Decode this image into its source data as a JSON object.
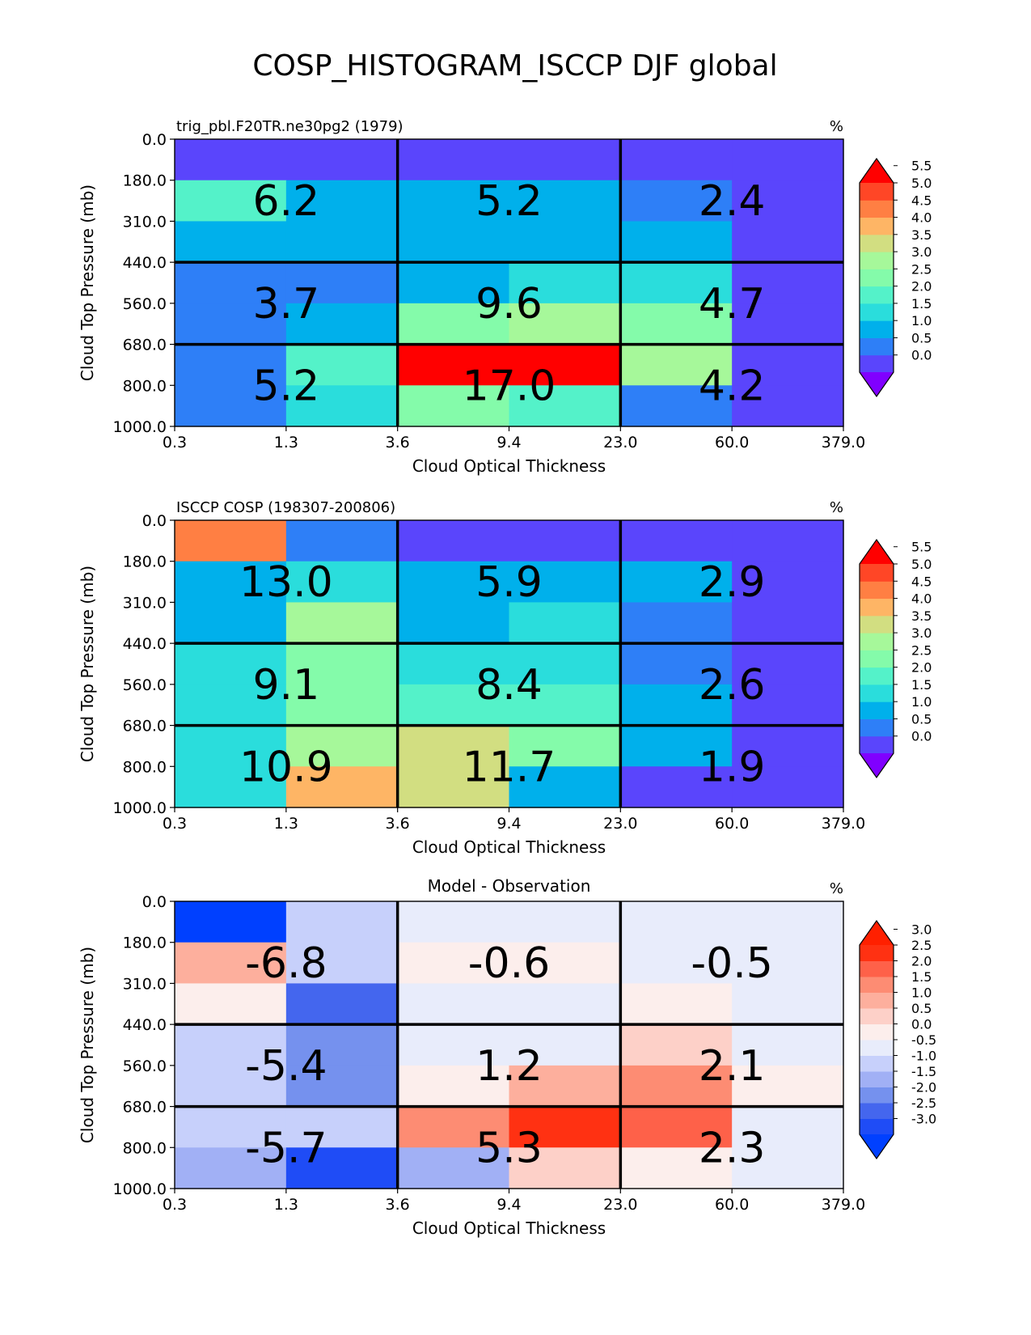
{
  "figure": {
    "suptitle": "COSP_HISTOGRAM_ISCCP DJF global"
  },
  "colors": {
    "rainbow_levels": [
      "#8000ff",
      "#5a45fc",
      "#2e7ff7",
      "#00b0eb",
      "#2adddc",
      "#54f2c9",
      "#84fbaa",
      "#a6f89a",
      "#d2de81",
      "#feb565",
      "#ff7f43",
      "#ff4626",
      "#ff0000"
    ],
    "diff_levels": [
      "#0040ff",
      "#1f4cf6",
      "#4466ee",
      "#7591ee",
      "#a1b0f5",
      "#c7d0fb",
      "#e8ecfb",
      "#fceeec",
      "#fdd0c8",
      "#fdaf9d",
      "#fd8c73",
      "#fe6149",
      "#ff3112",
      "#ff2000"
    ]
  },
  "chart_data": [
    {
      "type": "heatmap",
      "title": "trig_pbl.F20TR.ne30pg2 (1979)",
      "units": "%",
      "xlabel": "Cloud Optical Thickness",
      "ylabel": "Cloud Top Pressure (mb)",
      "x_edges": [
        "0.3",
        "1.3",
        "3.6",
        "9.4",
        "23.0",
        "60.0",
        "379.0"
      ],
      "y_edges": [
        "0.0",
        "180.0",
        "310.0",
        "440.0",
        "560.0",
        "680.0",
        "800.0",
        "1000.0"
      ],
      "values": [
        [
          0.3,
          0.3,
          0.3,
          0.3,
          0.3,
          0.3
        ],
        [
          2.2,
          1.3,
          1.3,
          1.3,
          0.8,
          0.3
        ],
        [
          1.3,
          1.3,
          1.3,
          1.3,
          1.3,
          0.3
        ],
        [
          0.8,
          0.8,
          1.3,
          1.8,
          1.8,
          0.3
        ],
        [
          0.8,
          1.3,
          2.8,
          3.3,
          2.8,
          0.3
        ],
        [
          0.8,
          2.3,
          6.0,
          6.0,
          3.3,
          0.3
        ],
        [
          0.8,
          1.8,
          2.8,
          2.3,
          0.8,
          0.3
        ]
      ],
      "colorbar": {
        "levels": [
          "0.0",
          "0.5",
          "1.0",
          "1.5",
          "2.0",
          "2.5",
          "3.0",
          "3.5",
          "4.0",
          "4.5",
          "5.0",
          "5.5"
        ],
        "extend": "both"
      },
      "annotations": [
        "6.2",
        "5.2",
        "2.4",
        "3.7",
        "9.6",
        "4.7",
        "5.2",
        "17.0",
        "4.2"
      ]
    },
    {
      "type": "heatmap",
      "title": "ISCCP COSP (198307-200806)",
      "units": "%",
      "xlabel": "Cloud Optical Thickness",
      "ylabel": "Cloud Top Pressure (mb)",
      "x_edges": [
        "0.3",
        "1.3",
        "3.6",
        "9.4",
        "23.0",
        "60.0",
        "379.0"
      ],
      "y_edges": [
        "0.0",
        "180.0",
        "310.0",
        "440.0",
        "560.0",
        "680.0",
        "800.0",
        "1000.0"
      ],
      "values": [
        [
          4.8,
          0.8,
          0.3,
          0.3,
          0.3,
          0.3
        ],
        [
          1.3,
          1.8,
          1.3,
          1.3,
          1.3,
          0.3
        ],
        [
          1.3,
          3.3,
          1.3,
          1.8,
          0.8,
          0.3
        ],
        [
          1.8,
          2.8,
          1.8,
          1.8,
          0.8,
          0.3
        ],
        [
          1.8,
          2.8,
          2.3,
          2.3,
          1.3,
          0.3
        ],
        [
          1.8,
          3.3,
          3.8,
          2.8,
          1.3,
          0.3
        ],
        [
          1.8,
          4.3,
          3.8,
          1.3,
          0.3,
          0.3
        ]
      ],
      "colorbar": {
        "levels": [
          "0.0",
          "0.5",
          "1.0",
          "1.5",
          "2.0",
          "2.5",
          "3.0",
          "3.5",
          "4.0",
          "4.5",
          "5.0",
          "5.5"
        ],
        "extend": "both"
      },
      "annotations": [
        "13.0",
        "5.9",
        "2.9",
        "9.1",
        "8.4",
        "2.6",
        "10.9",
        "11.7",
        "1.9"
      ]
    },
    {
      "type": "heatmap",
      "title": "Model - Observation",
      "units": "%",
      "xlabel": "Cloud Optical Thickness",
      "ylabel": "Cloud Top Pressure (mb)",
      "x_edges": [
        "0.3",
        "1.3",
        "3.6",
        "9.4",
        "23.0",
        "60.0",
        "379.0"
      ],
      "y_edges": [
        "0.0",
        "180.0",
        "310.0",
        "440.0",
        "560.0",
        "680.0",
        "800.0",
        "1000.0"
      ],
      "values": [
        [
          -3.2,
          -0.7,
          -0.2,
          -0.2,
          -0.2,
          -0.2
        ],
        [
          1.2,
          -0.7,
          0.2,
          0.2,
          -0.2,
          -0.2
        ],
        [
          0.2,
          -2.2,
          -0.2,
          -0.2,
          0.2,
          -0.2
        ],
        [
          -0.7,
          -1.7,
          -0.2,
          -0.2,
          0.7,
          -0.2
        ],
        [
          -0.7,
          -1.7,
          0.2,
          1.2,
          1.7,
          0.2
        ],
        [
          -0.7,
          -0.7,
          1.7,
          2.8,
          2.2,
          -0.2
        ],
        [
          -1.2,
          -2.7,
          -1.2,
          0.7,
          0.2,
          -0.2
        ]
      ],
      "colorbar": {
        "levels": [
          "-3.0",
          "-2.5",
          "-2.0",
          "-1.5",
          "-1.0",
          "-0.5",
          "0.0",
          "0.5",
          "1.0",
          "1.5",
          "2.0",
          "2.5",
          "3.0"
        ],
        "extend": "both"
      },
      "annotations": [
        "-6.8",
        "-0.6",
        "-0.5",
        "-5.4",
        "1.2",
        "2.1",
        "-5.7",
        "5.3",
        "2.3"
      ]
    }
  ]
}
